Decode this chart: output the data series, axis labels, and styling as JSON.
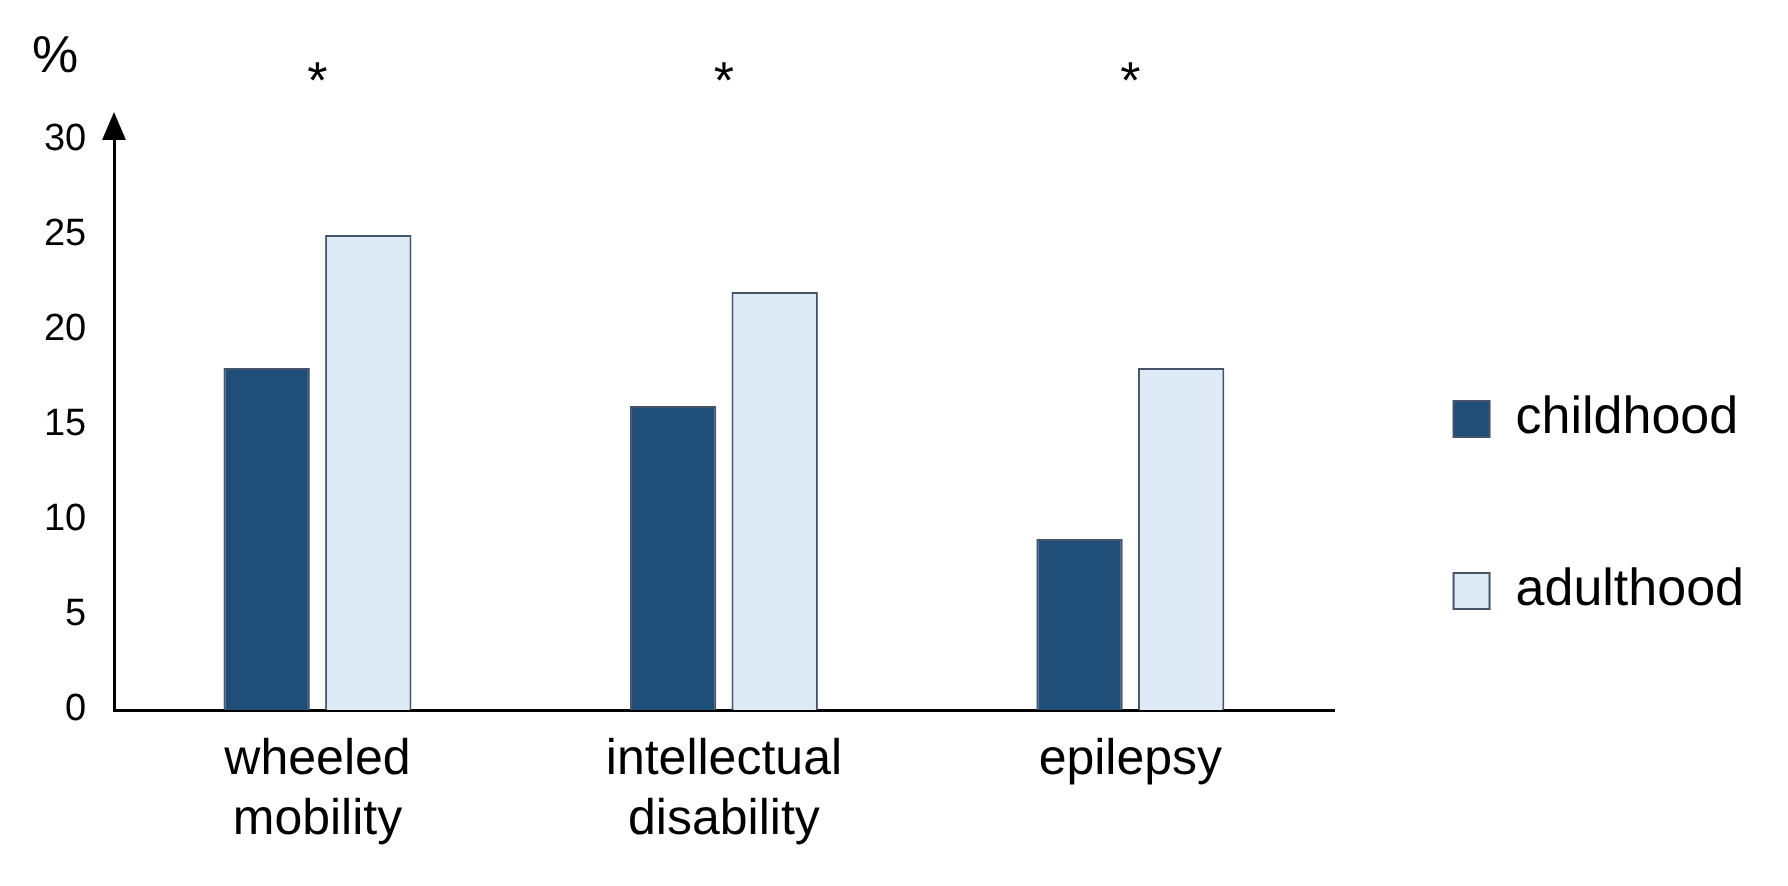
{
  "chart_data": {
    "type": "bar",
    "ylabel": "%",
    "categories": [
      "wheeled mobility",
      "intellectual disability",
      "epilepsy"
    ],
    "series": [
      {
        "name": "childhood",
        "color": "#1f4e79",
        "values": [
          18,
          16,
          9
        ]
      },
      {
        "name": "adulthood",
        "color": "#deebf7",
        "values": [
          25,
          22,
          18
        ]
      }
    ],
    "ylim": [
      0,
      30
    ],
    "yticks": [
      0,
      5,
      10,
      15,
      20,
      25,
      30
    ],
    "grid": false,
    "legend": "right",
    "annotations": [
      "*",
      "*",
      "*"
    ]
  }
}
